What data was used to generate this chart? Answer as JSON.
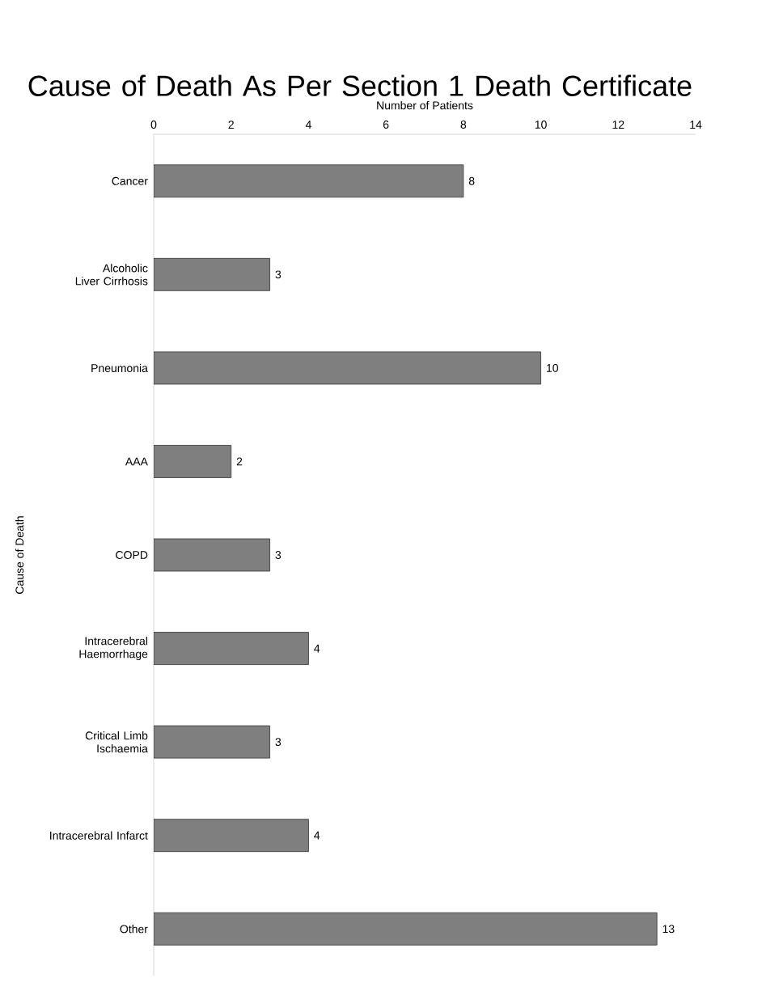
{
  "chart_data": {
    "type": "bar",
    "orientation": "horizontal",
    "title": "Cause of Death As Per Section 1 Death Certificate",
    "xlabel": "Number of Patients",
    "ylabel": "Cause of Death",
    "categories": [
      "Cancer",
      "Alcoholic Liver Cirrhosis",
      "Pneumonia",
      "AAA",
      "COPD",
      "Intracerebral Haemorrhage",
      "Critical Limb Ischaemia",
      "Intracerebral Infarct",
      "Other"
    ],
    "values": [
      8,
      3,
      10,
      2,
      3,
      4,
      3,
      4,
      13
    ],
    "color": "#7f7f7f",
    "xlim": [
      0,
      14
    ],
    "xticks": [
      0,
      2,
      4,
      6,
      8,
      10,
      12,
      14
    ],
    "data_labels": true,
    "grid": false
  }
}
